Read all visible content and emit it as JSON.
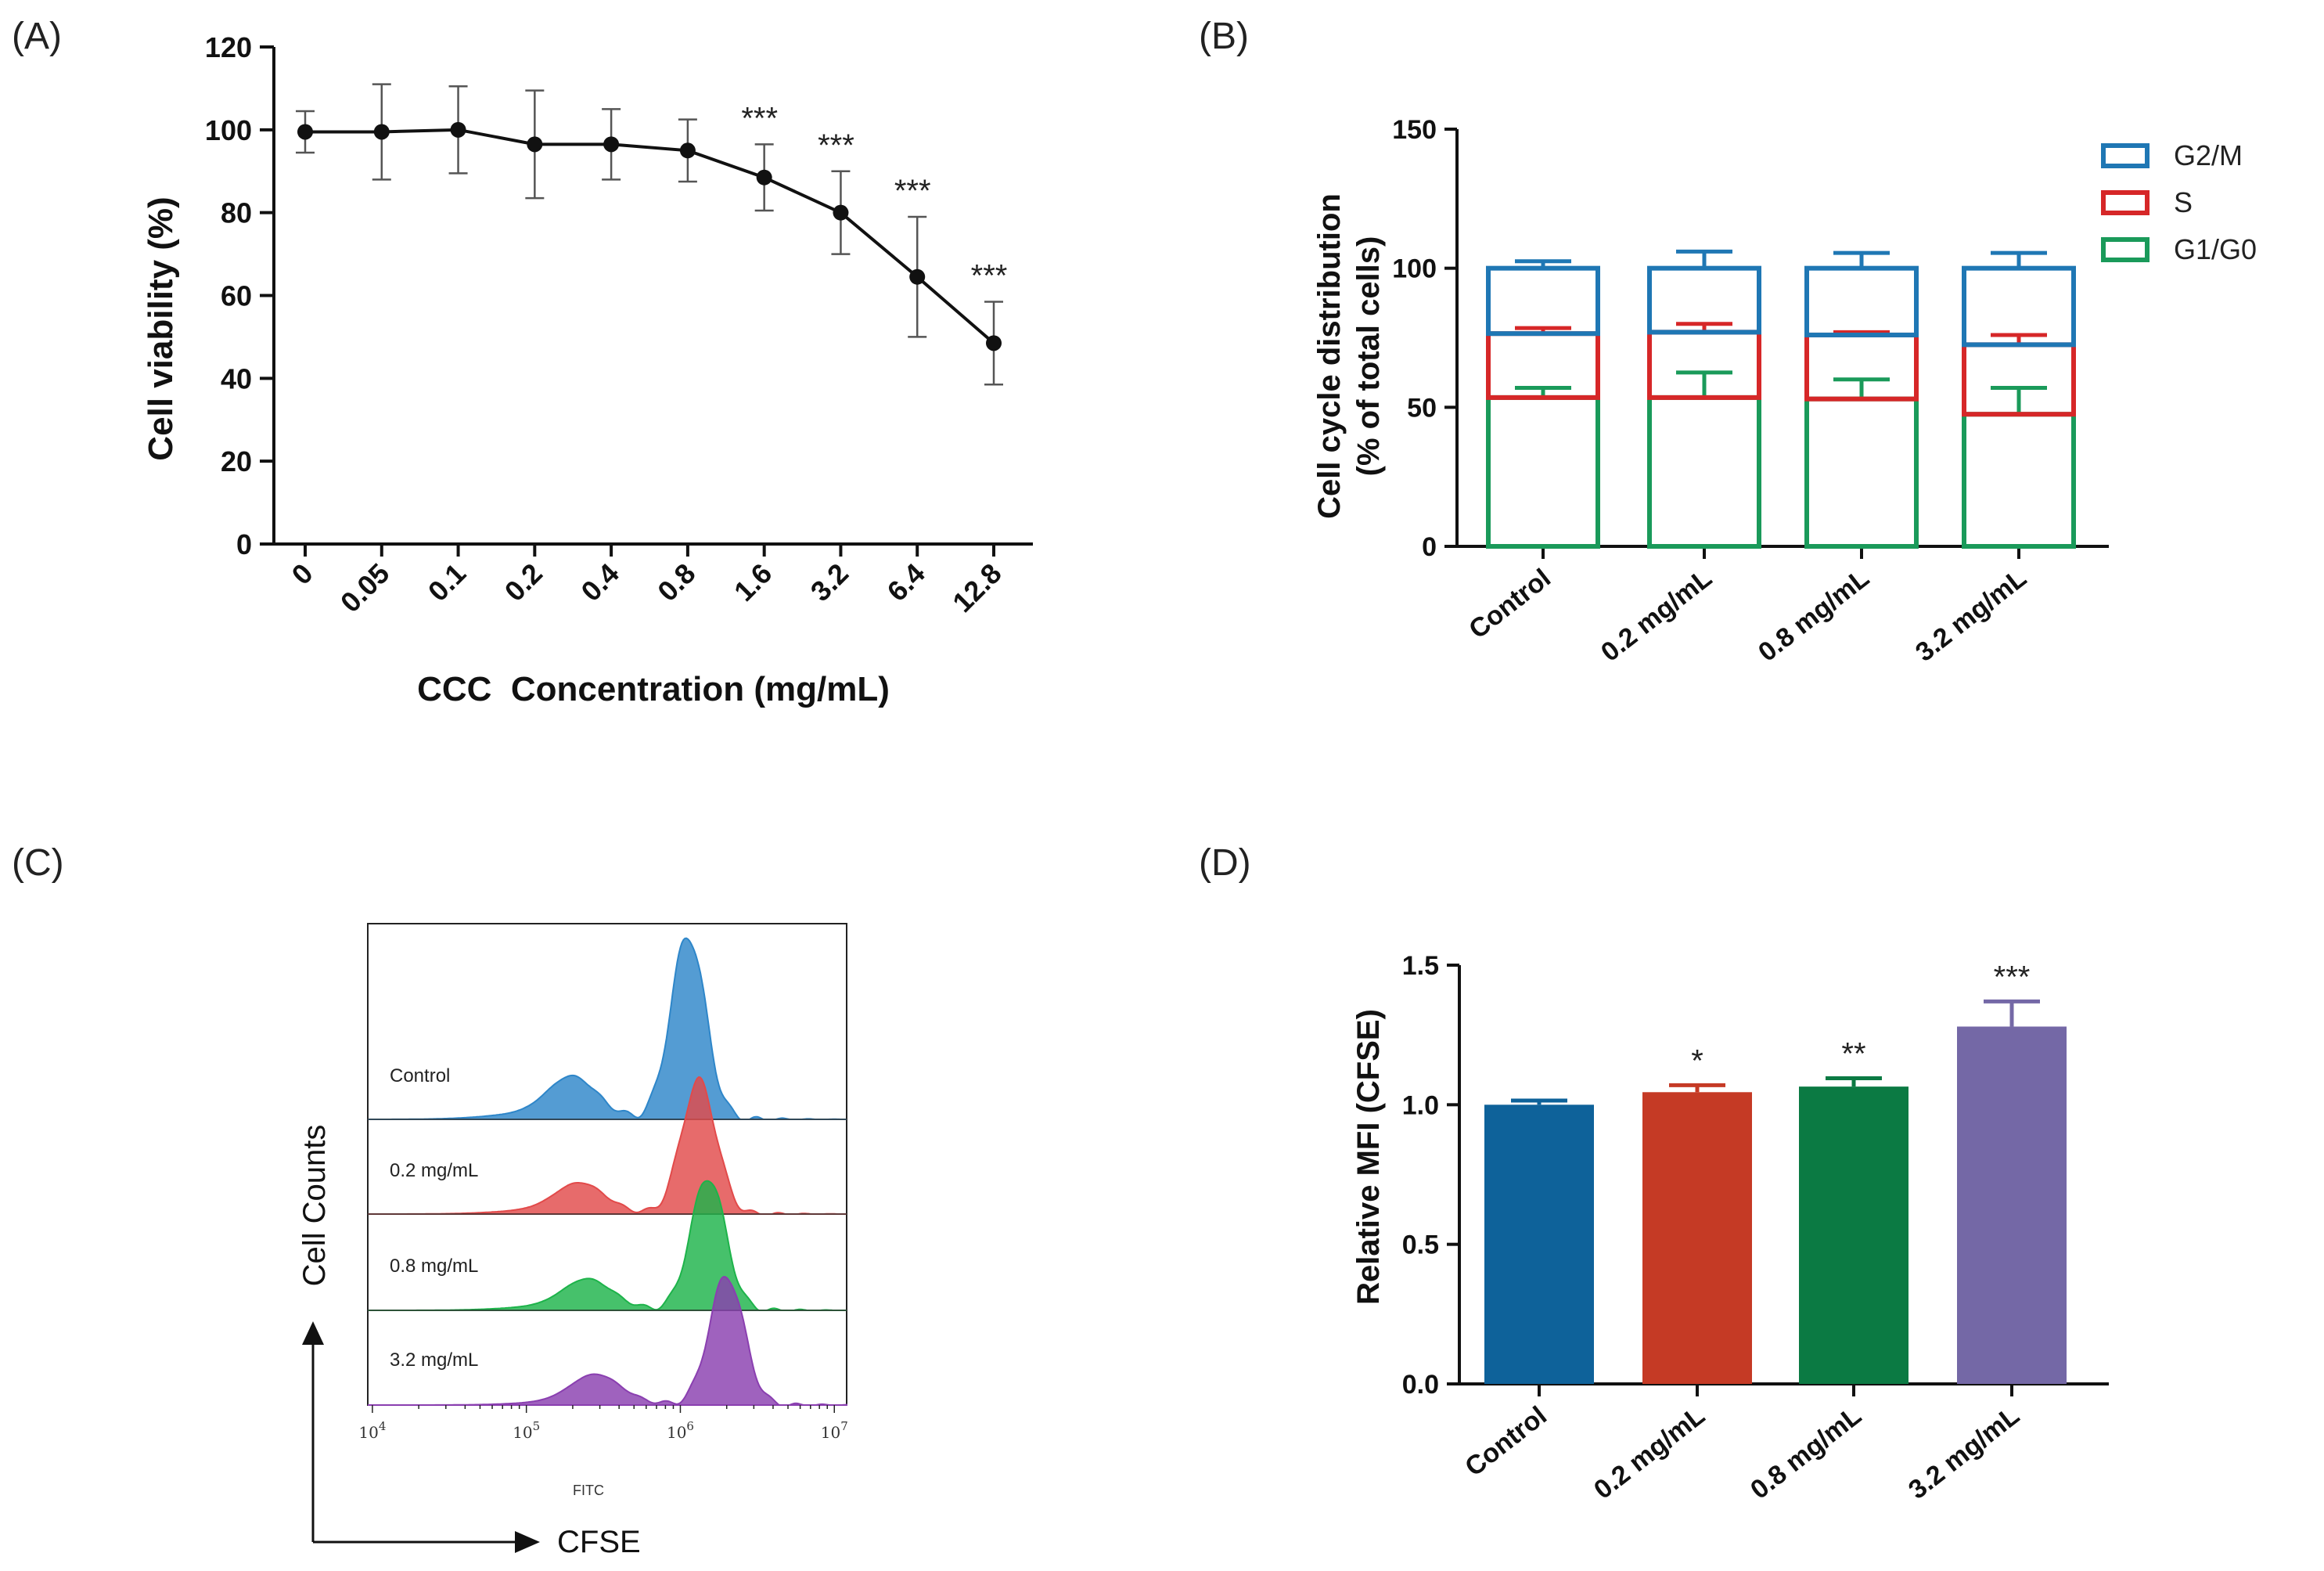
{
  "panels": {
    "a": "(A)",
    "b": "(B)",
    "c": "(C)",
    "d": "(D)"
  },
  "colors": {
    "g2m": "#1f77b4",
    "s": "#d62728",
    "g1g0": "#1a9a5a",
    "control": "#0e629a",
    "dose02": "#c53a25",
    "dose08": "#0b7a43",
    "dose32": "#7468a6",
    "hist_control": "#2e86c9",
    "hist_02": "#e24a4a",
    "hist_08": "#1db34a",
    "hist_32": "#8a3fb0"
  },
  "chart_data": [
    {
      "id": "A",
      "type": "line",
      "title": "",
      "xlabel": "CCC  Concentration (mg/mL)",
      "ylabel": "Cell viability (%)",
      "ylim": [
        0,
        120
      ],
      "yticks": [
        "0",
        "20",
        "40",
        "60",
        "80",
        "100",
        "120"
      ],
      "categories": [
        "0",
        "0.05",
        "0.1",
        "0.2",
        "0.4",
        "0.8",
        "1.6",
        "3.2",
        "6.4",
        "12.8"
      ],
      "values": [
        99.5,
        99.5,
        100,
        96.5,
        96.5,
        95,
        88.5,
        80,
        64.5,
        48.5
      ],
      "errors": [
        5,
        11.5,
        10.5,
        13,
        8.5,
        7.5,
        8,
        10,
        14.5,
        10
      ],
      "significance": [
        "",
        "",
        "",
        "",
        "",
        "",
        "***",
        "***",
        "***",
        "***"
      ]
    },
    {
      "id": "B",
      "type": "bar",
      "stacked": true,
      "xlabel": "",
      "ylabel_line1": "Cell cycle distribution",
      "ylabel_line2": "(% of total cells)",
      "ylim": [
        0,
        150
      ],
      "yticks": [
        "0",
        "50",
        "100",
        "150"
      ],
      "categories": [
        "Control",
        "0.2 mg/mL",
        "0.8 mg/mL",
        "3.2 mg/mL"
      ],
      "series": [
        {
          "name": "G1/G0",
          "values": [
            53.5,
            53.5,
            53,
            47.5
          ],
          "errors": [
            3.5,
            9,
            7,
            9.5
          ]
        },
        {
          "name": "S",
          "values": [
            23,
            23.5,
            23,
            25
          ],
          "errors": [
            2,
            3,
            1,
            3.5
          ]
        },
        {
          "name": "G2/M",
          "values": [
            23.5,
            23,
            24,
            27.5
          ],
          "errors": [
            2.5,
            6,
            5.5,
            5.5
          ]
        }
      ],
      "legend": [
        "G2/M",
        "S",
        "G1/G0"
      ],
      "legend_position": "top-right"
    },
    {
      "id": "C",
      "type": "histogram",
      "xlabel": "FITC",
      "ylabel": "Cell Counts",
      "arrow_label": "CFSE",
      "x_scale": "log",
      "x_ticks": [
        4,
        5,
        6,
        7
      ],
      "series": [
        {
          "name": "Control",
          "peak_log": 6.05,
          "shoulder_log": 5.3
        },
        {
          "name": "0.2 mg/mL",
          "peak_log": 6.12,
          "shoulder_log": 5.35
        },
        {
          "name": "0.8 mg/mL",
          "peak_log": 6.18,
          "shoulder_log": 5.4
        },
        {
          "name": "3.2 mg/mL",
          "peak_log": 6.3,
          "shoulder_log": 5.45
        }
      ]
    },
    {
      "id": "D",
      "type": "bar",
      "xlabel": "",
      "ylabel": "Relative MFI (CFSE)",
      "ylim": [
        0,
        1.5
      ],
      "yticks": [
        "0.0",
        "0.5",
        "1.0",
        "1.5"
      ],
      "categories": [
        "Control",
        "0.2 mg/mL",
        "0.8 mg/mL",
        "3.2 mg/mL"
      ],
      "values": [
        1.0,
        1.045,
        1.065,
        1.28
      ],
      "errors": [
        0.015,
        0.025,
        0.03,
        0.09
      ],
      "significance": [
        "",
        "*",
        "**",
        "***"
      ]
    }
  ]
}
